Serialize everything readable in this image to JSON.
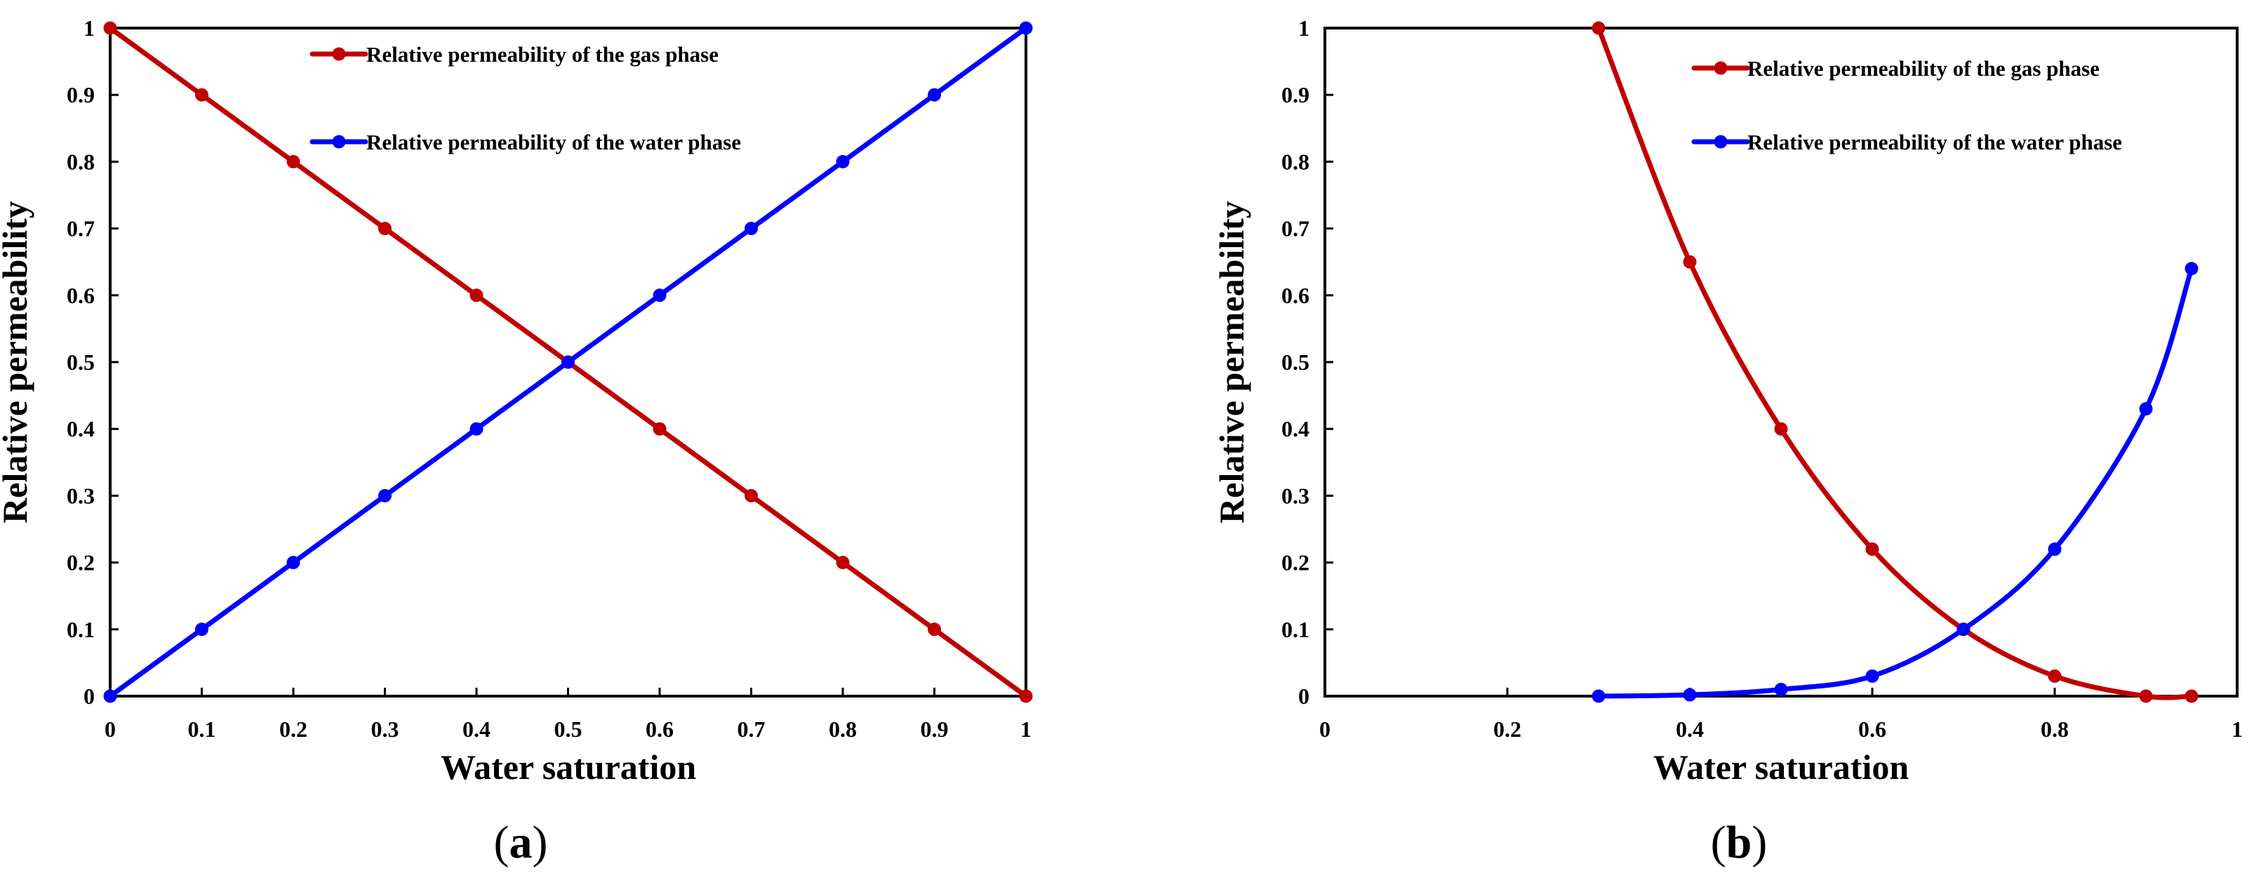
{
  "chart_data": [
    {
      "type": "line",
      "panel_label": "a",
      "xlabel": "Water saturation",
      "ylabel": "Relative permeability",
      "xlim": [
        0,
        1
      ],
      "ylim": [
        0,
        1
      ],
      "x_ticks": [
        "0",
        "0.1",
        "0.2",
        "0.3",
        "0.4",
        "0.5",
        "0.6",
        "0.7",
        "0.8",
        "0.9",
        "1"
      ],
      "y_ticks": [
        "0",
        "0.1",
        "0.2",
        "0.3",
        "0.4",
        "0.5",
        "0.6",
        "0.7",
        "0.8",
        "0.9",
        "1"
      ],
      "grid": false,
      "legend_position": "top-center",
      "smooth": false,
      "series": [
        {
          "name": "Relative permeability of the gas phase",
          "color": "#C00000",
          "x": [
            0,
            0.1,
            0.2,
            0.3,
            0.4,
            0.5,
            0.6,
            0.7,
            0.8,
            0.9,
            1
          ],
          "y": [
            1,
            0.9,
            0.8,
            0.7,
            0.6,
            0.5,
            0.4,
            0.3,
            0.2,
            0.1,
            0
          ]
        },
        {
          "name": "Relative permeability of the water phase",
          "color": "#0000FF",
          "x": [
            0,
            0.1,
            0.2,
            0.3,
            0.4,
            0.5,
            0.6,
            0.7,
            0.8,
            0.9,
            1
          ],
          "y": [
            0,
            0.1,
            0.2,
            0.3,
            0.4,
            0.5,
            0.6,
            0.7,
            0.8,
            0.9,
            1
          ]
        }
      ]
    },
    {
      "type": "line",
      "panel_label": "b",
      "xlabel": "Water saturation",
      "ylabel": "Relative permeability",
      "xlim": [
        0,
        1
      ],
      "ylim": [
        0,
        1
      ],
      "x_ticks": [
        "0",
        "0.2",
        "0.4",
        "0.6",
        "0.8",
        "1"
      ],
      "y_ticks": [
        "0",
        "0.1",
        "0.2",
        "0.3",
        "0.4",
        "0.5",
        "0.6",
        "0.7",
        "0.8",
        "0.9",
        "1"
      ],
      "grid": false,
      "legend_position": "top-right",
      "smooth": true,
      "series": [
        {
          "name": "Relative permeability of the gas phase",
          "color": "#C00000",
          "x": [
            0.3,
            0.4,
            0.5,
            0.6,
            0.7,
            0.8,
            0.9,
            0.95
          ],
          "y": [
            1,
            0.65,
            0.4,
            0.22,
            0.1,
            0.03,
            0,
            0
          ]
        },
        {
          "name": "Relative permeability of the water phase",
          "color": "#0000FF",
          "x": [
            0.3,
            0.4,
            0.5,
            0.6,
            0.7,
            0.8,
            0.9,
            0.95
          ],
          "y": [
            0,
            0.002,
            0.01,
            0.03,
            0.1,
            0.22,
            0.43,
            0.64
          ]
        }
      ]
    }
  ]
}
